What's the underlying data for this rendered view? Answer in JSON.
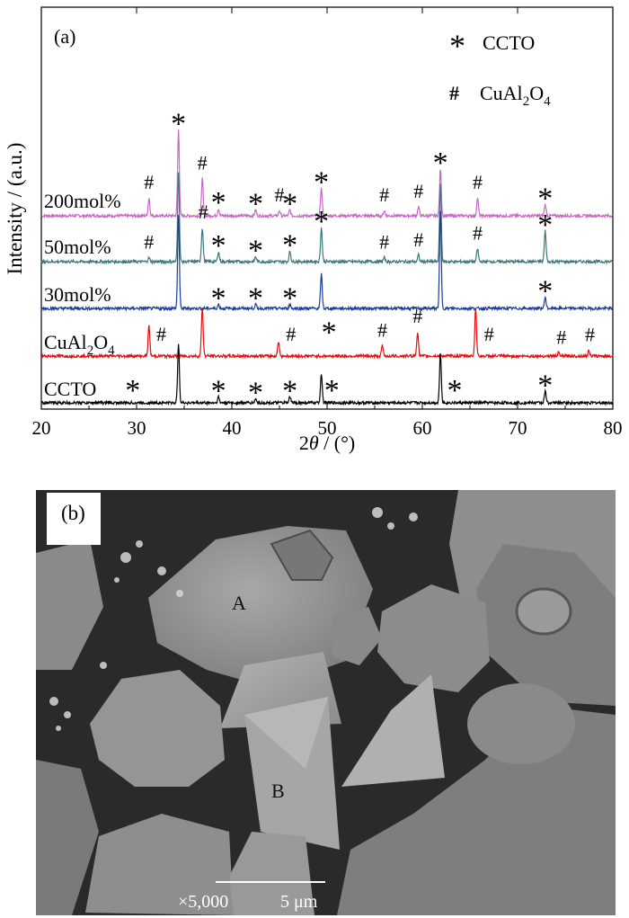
{
  "chart_data": {
    "type": "line",
    "panel_label": "(a)",
    "xlabel_prefix": "2",
    "xlabel_theta": "θ",
    "xlabel_suffix": " / (°)",
    "ylabel": "Intensity / (a.u.)",
    "xlim": [
      20,
      80
    ],
    "xticks": [
      "20",
      "30",
      "40",
      "50",
      "60",
      "70",
      "80"
    ],
    "legend": {
      "placement": "top-right",
      "items": [
        {
          "symbol": "*",
          "label": "CCTO"
        },
        {
          "symbol": "#",
          "label_main": "CuAl",
          "label_sub1": "2",
          "label_mid": "O",
          "label_sub2": "4"
        }
      ]
    },
    "series": [
      {
        "label": "200mol%",
        "color": "#c66ac6",
        "offset": 4,
        "peaks": [
          [
            31.3,
            0.55
          ],
          [
            34.4,
            2.65
          ],
          [
            36.9,
            1.15
          ],
          [
            38.6,
            0.22
          ],
          [
            42.5,
            0.18
          ],
          [
            45.0,
            0.16
          ],
          [
            46.1,
            0.18
          ],
          [
            49.4,
            0.85
          ],
          [
            56.0,
            0.16
          ],
          [
            59.6,
            0.28
          ],
          [
            61.9,
            1.45
          ],
          [
            65.8,
            0.55
          ],
          [
            72.9,
            0.35
          ]
        ],
        "markers": [
          [
            31.3,
            "#"
          ],
          [
            34.4,
            "*"
          ],
          [
            36.9,
            "#"
          ],
          [
            38.6,
            "*"
          ],
          [
            42.5,
            "*"
          ],
          [
            45.0,
            "#"
          ],
          [
            46.1,
            "*"
          ],
          [
            49.4,
            "*"
          ],
          [
            56.0,
            "#"
          ],
          [
            59.6,
            "#"
          ],
          [
            61.9,
            "*"
          ],
          [
            65.8,
            "#"
          ],
          [
            72.9,
            "*"
          ]
        ]
      },
      {
        "label": "50mol%",
        "color": "#3a7a7a",
        "offset": 3,
        "peaks": [
          [
            31.3,
            0.12
          ],
          [
            34.4,
            2.8
          ],
          [
            36.9,
            1.05
          ],
          [
            38.6,
            0.3
          ],
          [
            42.5,
            0.15
          ],
          [
            46.1,
            0.32
          ],
          [
            49.4,
            1.05
          ],
          [
            56.0,
            0.12
          ],
          [
            59.6,
            0.2
          ],
          [
            61.9,
            2.4
          ],
          [
            65.8,
            0.4
          ],
          [
            72.9,
            0.95
          ]
        ],
        "markers": [
          [
            31.3,
            "#"
          ],
          [
            37.0,
            "#"
          ],
          [
            38.6,
            "*"
          ],
          [
            42.5,
            "*"
          ],
          [
            46.1,
            "*"
          ],
          [
            49.4,
            "*"
          ],
          [
            56.0,
            "#"
          ],
          [
            59.6,
            "#"
          ],
          [
            65.8,
            "#"
          ],
          [
            72.9,
            "*"
          ]
        ]
      },
      {
        "label": "30mol%",
        "color": "#1a3c9c",
        "offset": 2,
        "peaks": [
          [
            34.4,
            2.9
          ],
          [
            38.6,
            0.12
          ],
          [
            42.5,
            0.12
          ],
          [
            46.1,
            0.12
          ],
          [
            49.4,
            1.05
          ],
          [
            61.9,
            3.0
          ],
          [
            72.9,
            0.35
          ]
        ],
        "markers": [
          [
            38.6,
            "*"
          ],
          [
            42.5,
            "*"
          ],
          [
            46.1,
            "*"
          ],
          [
            72.9,
            "*"
          ]
        ]
      },
      {
        "label_main": "CuAl",
        "label_sub1": "2",
        "label_mid": "O",
        "label_sub2": "4",
        "color": "#e01010",
        "offset": 1,
        "peaks": [
          [
            31.3,
            0.95
          ],
          [
            36.9,
            1.5
          ],
          [
            44.9,
            0.45
          ],
          [
            55.8,
            0.32
          ],
          [
            59.5,
            0.75
          ],
          [
            65.6,
            1.5
          ],
          [
            74.3,
            0.1
          ],
          [
            77.5,
            0.18
          ]
        ],
        "markers": [
          [
            32.6,
            "#"
          ],
          [
            46.2,
            "#"
          ],
          [
            55.8,
            "#"
          ],
          [
            59.5,
            "#"
          ],
          [
            67.0,
            "#"
          ],
          [
            74.6,
            "#"
          ],
          [
            77.6,
            "#"
          ]
        ]
      },
      {
        "label": "CCTO",
        "color": "#000000",
        "offset": 0,
        "peaks": [
          [
            34.4,
            1.85
          ],
          [
            38.6,
            0.18
          ],
          [
            42.5,
            0.12
          ],
          [
            46.1,
            0.18
          ],
          [
            49.4,
            0.92
          ],
          [
            61.9,
            1.55
          ],
          [
            72.9,
            0.35
          ]
        ],
        "markers": [
          [
            29.6,
            "*"
          ],
          [
            38.6,
            "*"
          ],
          [
            42.5,
            "*"
          ],
          [
            46.1,
            "*"
          ],
          [
            50.5,
            "*"
          ],
          [
            63.4,
            "*"
          ],
          [
            72.9,
            "*"
          ]
        ]
      }
    ],
    "extra_markers": [
      [
        50.2,
        4.7,
        "*"
      ]
    ]
  },
  "micrograph": {
    "panel_label": "(b)",
    "grain_labels": [
      "A",
      "B"
    ],
    "magnification": "×5,000",
    "scale_bar": "5 μm"
  }
}
